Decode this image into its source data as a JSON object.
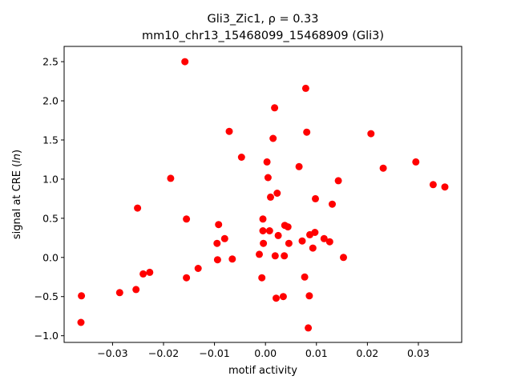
{
  "chart_data": {
    "type": "scatter",
    "title_line1": "Gli3_Zic1, ρ = 0.33",
    "title_line2": "mm10_chr13_15468099_15468909 (Gli3)",
    "xlabel": "motif activity",
    "ylabel": "signal at CRE (ln)",
    "xlim": [
      -0.0395,
      0.0385
    ],
    "ylim": [
      -1.085,
      2.695
    ],
    "xticks": [
      -0.03,
      -0.02,
      -0.01,
      0.0,
      0.01,
      0.02,
      0.03
    ],
    "xtick_labels": [
      "−0.03",
      "−0.02",
      "−0.01",
      "0.00",
      "0.01",
      "0.02",
      "0.03"
    ],
    "yticks": [
      -1.0,
      -0.5,
      0.0,
      0.5,
      1.0,
      1.5,
      2.0,
      2.5
    ],
    "ytick_labels": [
      "−1.0",
      "−0.5",
      "0.0",
      "0.5",
      "1.0",
      "1.5",
      "2.0",
      "2.5"
    ],
    "grid": false,
    "marker_color": "#ff0000",
    "points": [
      {
        "x": -0.0362,
        "y": -0.83
      },
      {
        "x": -0.0361,
        "y": -0.49
      },
      {
        "x": -0.0286,
        "y": -0.45
      },
      {
        "x": -0.0254,
        "y": -0.41
      },
      {
        "x": -0.0251,
        "y": 0.63
      },
      {
        "x": -0.024,
        "y": -0.21
      },
      {
        "x": -0.0227,
        "y": -0.19
      },
      {
        "x": -0.0186,
        "y": 1.01
      },
      {
        "x": -0.0158,
        "y": 2.5
      },
      {
        "x": -0.0155,
        "y": 0.49
      },
      {
        "x": -0.0155,
        "y": -0.26
      },
      {
        "x": -0.0132,
        "y": -0.14
      },
      {
        "x": -0.0095,
        "y": 0.18
      },
      {
        "x": -0.0094,
        "y": -0.03
      },
      {
        "x": -0.0092,
        "y": 0.42
      },
      {
        "x": -0.008,
        "y": 0.24
      },
      {
        "x": -0.0071,
        "y": 1.61
      },
      {
        "x": -0.0065,
        "y": -0.02
      },
      {
        "x": -0.0047,
        "y": 1.28
      },
      {
        "x": -0.0012,
        "y": 0.04
      },
      {
        "x": -0.0007,
        "y": -0.26
      },
      {
        "x": -0.0005,
        "y": 0.49
      },
      {
        "x": -0.0005,
        "y": 0.34
      },
      {
        "x": -0.0004,
        "y": 0.18
      },
      {
        "x": 0.0003,
        "y": 1.22
      },
      {
        "x": 0.0005,
        "y": 1.02
      },
      {
        "x": 0.0008,
        "y": 0.34
      },
      {
        "x": 0.001,
        "y": 0.77
      },
      {
        "x": 0.0015,
        "y": 1.52
      },
      {
        "x": 0.0018,
        "y": 1.91
      },
      {
        "x": 0.0019,
        "y": 0.02
      },
      {
        "x": 0.0021,
        "y": -0.52
      },
      {
        "x": 0.0023,
        "y": 0.82
      },
      {
        "x": 0.0025,
        "y": 0.28
      },
      {
        "x": 0.0035,
        "y": -0.5
      },
      {
        "x": 0.0037,
        "y": 0.02
      },
      {
        "x": 0.0038,
        "y": 0.41
      },
      {
        "x": 0.0044,
        "y": 0.39
      },
      {
        "x": 0.0046,
        "y": 0.18
      },
      {
        "x": 0.0066,
        "y": 1.16
      },
      {
        "x": 0.0072,
        "y": 0.21
      },
      {
        "x": 0.0077,
        "y": -0.25
      },
      {
        "x": 0.0079,
        "y": 2.16
      },
      {
        "x": 0.0081,
        "y": 1.6
      },
      {
        "x": 0.0084,
        "y": -0.9
      },
      {
        "x": 0.0086,
        "y": -0.49
      },
      {
        "x": 0.0087,
        "y": 0.29
      },
      {
        "x": 0.0093,
        "y": 0.12
      },
      {
        "x": 0.0097,
        "y": 0.32
      },
      {
        "x": 0.0098,
        "y": 0.75
      },
      {
        "x": 0.0115,
        "y": 0.24
      },
      {
        "x": 0.0126,
        "y": 0.2
      },
      {
        "x": 0.0131,
        "y": 0.68
      },
      {
        "x": 0.0143,
        "y": 0.98
      },
      {
        "x": 0.0153,
        "y": 0.0
      },
      {
        "x": 0.0207,
        "y": 1.58
      },
      {
        "x": 0.0231,
        "y": 1.14
      },
      {
        "x": 0.0295,
        "y": 1.22
      },
      {
        "x": 0.0329,
        "y": 0.93
      },
      {
        "x": 0.0352,
        "y": 0.9
      }
    ]
  }
}
